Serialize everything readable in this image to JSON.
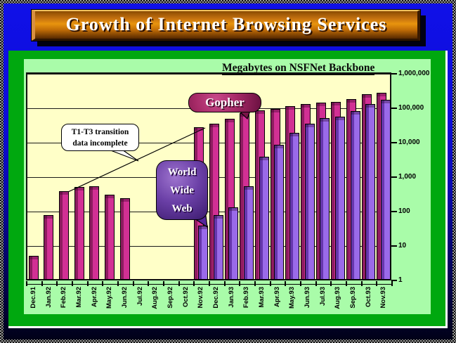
{
  "banner": {
    "title": "Growth of Internet Browsing Services"
  },
  "chart_data": {
    "type": "bar",
    "title": "Megabytes on NSFNet Backbone",
    "y_scale": "log",
    "ylim": [
      1,
      1000000
    ],
    "ytick_labels": [
      "1",
      "10",
      "100",
      "1,000",
      "10,000",
      "100,000",
      "1,000,000"
    ],
    "grid": true,
    "legend_position": "callout-bubbles",
    "categories": [
      "Dec.91",
      "Jan.92",
      "Feb.92",
      "Mar.92",
      "Apr.92",
      "May.92",
      "Jun.92",
      "Jul.92",
      "Aug.92",
      "Sep.92",
      "Oct.92",
      "Nov.92",
      "Dec.92",
      "Jan.93",
      "Feb.93",
      "Mar.93",
      "Apr.93",
      "May.93",
      "Jun.93",
      "Jul.93",
      "Aug.93",
      "Sep.93",
      "Oct.93",
      "Nov.93"
    ],
    "series": [
      {
        "name": "Gopher",
        "color": "#d23094",
        "dark_color": "#8e1c60",
        "values": [
          5,
          80,
          380,
          510,
          550,
          300,
          240,
          null,
          null,
          null,
          null,
          28000,
          36000,
          50000,
          73000,
          88000,
          97000,
          117000,
          135000,
          150000,
          155000,
          190000,
          260000,
          290000
        ]
      },
      {
        "name": "World Wide Web",
        "color": "#9a6ae9",
        "dark_color": "#6636ad",
        "values": [
          null,
          null,
          null,
          null,
          null,
          null,
          null,
          null,
          null,
          null,
          null,
          38,
          77,
          130,
          530,
          3900,
          8700,
          19000,
          36000,
          52000,
          57000,
          84000,
          135000,
          180000
        ]
      }
    ],
    "annotations": [
      {
        "text": "T1-T3 transition data incomplete",
        "target": "gap Jul.92-Oct.92 with interpolation line"
      },
      {
        "text": "Gopher",
        "target": "pink bars"
      },
      {
        "text": "World Wide Web",
        "target": "purple bars"
      }
    ]
  },
  "callouts": {
    "t1t3": {
      "line1": "T1-T3 transition",
      "line2": "data incomplete"
    },
    "gopher": {
      "label": "Gopher"
    },
    "www": {
      "line1": "World",
      "line2": "Wide",
      "line3": "Web"
    }
  }
}
